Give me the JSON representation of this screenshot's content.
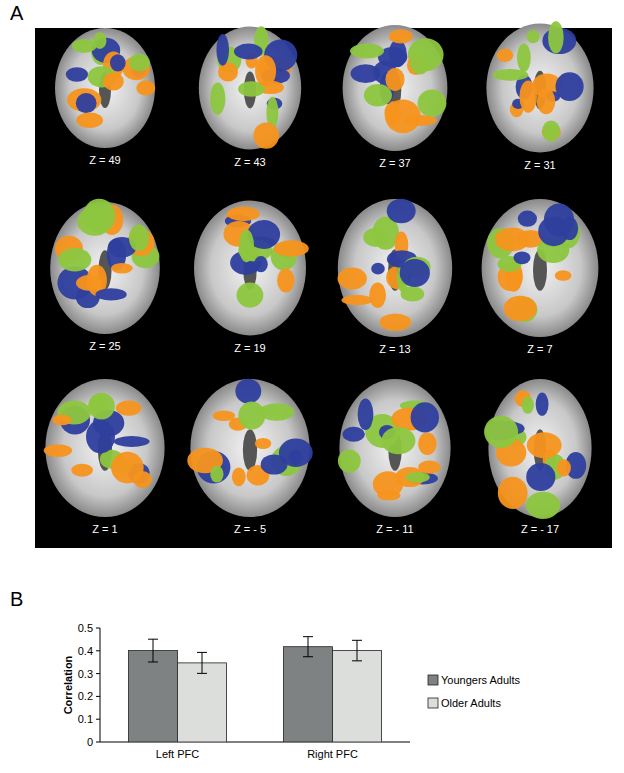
{
  "panels": {
    "a": {
      "label": "A",
      "slices": [
        "Z = 49",
        "Z = 43",
        "Z = 37",
        "Z = 31",
        "Z = 25",
        "Z = 19",
        "Z = 13",
        "Z = 7",
        "Z = 1",
        "Z = - 5",
        "Z = - 11",
        "Z = - 17"
      ]
    },
    "b": {
      "label": "B"
    }
  },
  "chart_data": {
    "type": "bar",
    "y_label": "Correlation",
    "categories": [
      "Left PFC",
      "Right PFC"
    ],
    "series": [
      {
        "name": "Youngers Adults",
        "color": "#7f8282",
        "values": [
          0.401,
          0.418
        ],
        "errors": [
          0.05,
          0.044
        ]
      },
      {
        "name": "Older Adults",
        "color": "#dcdedb",
        "values": [
          0.347,
          0.401
        ],
        "errors": [
          0.046,
          0.045
        ]
      }
    ],
    "ylim": [
      0,
      0.5
    ],
    "yticks": [
      0,
      0.1,
      0.2,
      0.3,
      0.4,
      0.5
    ],
    "legend": "right",
    "grid": false
  }
}
